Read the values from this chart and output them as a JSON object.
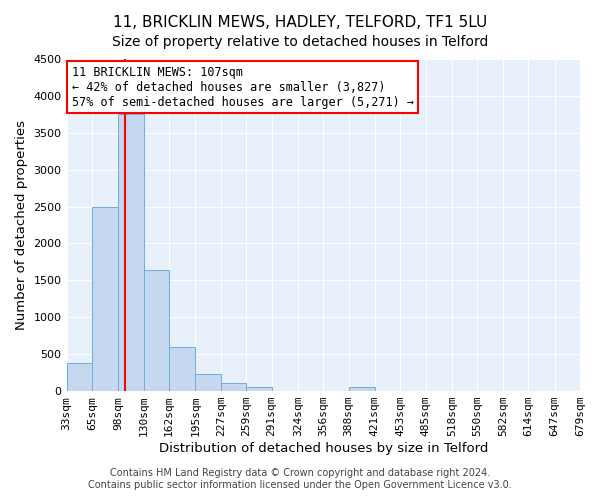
{
  "title": "11, BRICKLIN MEWS, HADLEY, TELFORD, TF1 5LU",
  "subtitle": "Size of property relative to detached houses in Telford",
  "xlabel": "Distribution of detached houses by size in Telford",
  "ylabel": "Number of detached properties",
  "bins": [
    33,
    65,
    98,
    130,
    162,
    195,
    227,
    259,
    291,
    324,
    356,
    388,
    421,
    453,
    485,
    518,
    550,
    582,
    614,
    647,
    679
  ],
  "bin_labels": [
    "33sqm",
    "65sqm",
    "98sqm",
    "130sqm",
    "162sqm",
    "195sqm",
    "227sqm",
    "259sqm",
    "291sqm",
    "324sqm",
    "356sqm",
    "388sqm",
    "421sqm",
    "453sqm",
    "485sqm",
    "518sqm",
    "550sqm",
    "582sqm",
    "614sqm",
    "647sqm",
    "679sqm"
  ],
  "values": [
    375,
    2500,
    3750,
    1640,
    600,
    230,
    110,
    55,
    0,
    0,
    0,
    50,
    0,
    0,
    0,
    0,
    0,
    0,
    0,
    0
  ],
  "bar_color": "#c5d8f0",
  "bar_edgecolor": "#6baed6",
  "vline_x": 107,
  "vline_color": "red",
  "annotation_line1": "11 BRICKLIN MEWS: 107sqm",
  "annotation_line2": "← 42% of detached houses are smaller (3,827)",
  "annotation_line3": "57% of semi-detached houses are larger (5,271) →",
  "annotation_box_edgecolor": "red",
  "annotation_box_facecolor": "white",
  "ylim": [
    0,
    4500
  ],
  "yticks": [
    0,
    500,
    1000,
    1500,
    2000,
    2500,
    3000,
    3500,
    4000,
    4500
  ],
  "footnote1": "Contains HM Land Registry data © Crown copyright and database right 2024.",
  "footnote2": "Contains public sector information licensed under the Open Government Licence v3.0.",
  "bg_color": "#ffffff",
  "plot_bg_color": "#e8f0fb",
  "grid_color": "#ffffff",
  "title_fontsize": 11,
  "label_fontsize": 9.5,
  "tick_fontsize": 8,
  "annot_fontsize": 8.5,
  "footnote_fontsize": 7
}
